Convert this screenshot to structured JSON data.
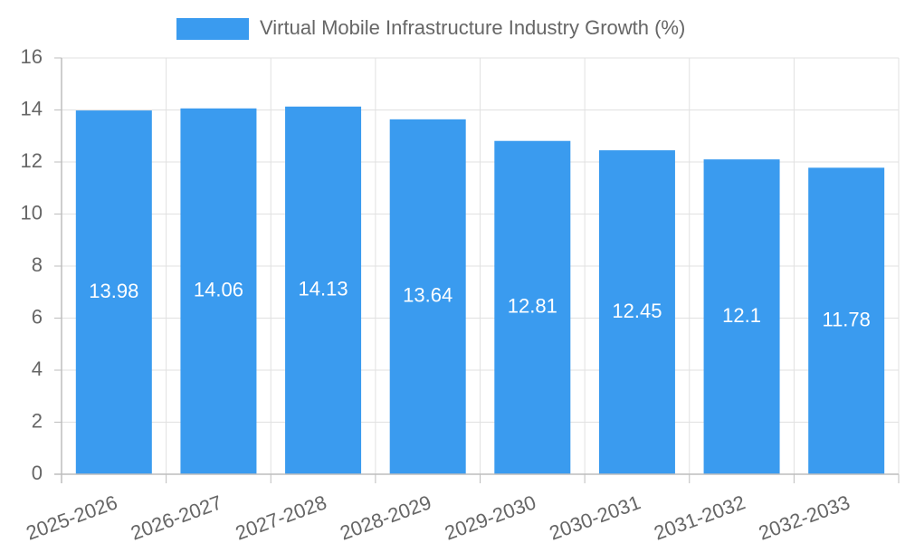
{
  "chart_data": {
    "type": "bar",
    "categories": [
      "2025-2026",
      "2026-2027",
      "2027-2028",
      "2028-2029",
      "2029-2030",
      "2030-2031",
      "2031-2032",
      "2032-2033"
    ],
    "series": [
      {
        "name": "Virtual Mobile Infrastructure Industry Growth (%)",
        "values": [
          13.98,
          14.06,
          14.13,
          13.64,
          12.81,
          12.45,
          12.1,
          11.78
        ]
      }
    ],
    "data_labels": [
      "13.98",
      "14.06",
      "14.13",
      "13.64",
      "12.81",
      "12.45",
      "12.1",
      "11.78"
    ],
    "y_ticks": [
      "0",
      "2",
      "4",
      "6",
      "8",
      "10",
      "12",
      "14",
      "16"
    ],
    "ylim": [
      0,
      16
    ],
    "grid": true,
    "legend_position": "top",
    "colors": {
      "bar": "#3a9bef",
      "grid": "#e1e1e1",
      "axis": "#bdbdbd",
      "text": "#666666",
      "data_label": "#ffffff"
    }
  }
}
